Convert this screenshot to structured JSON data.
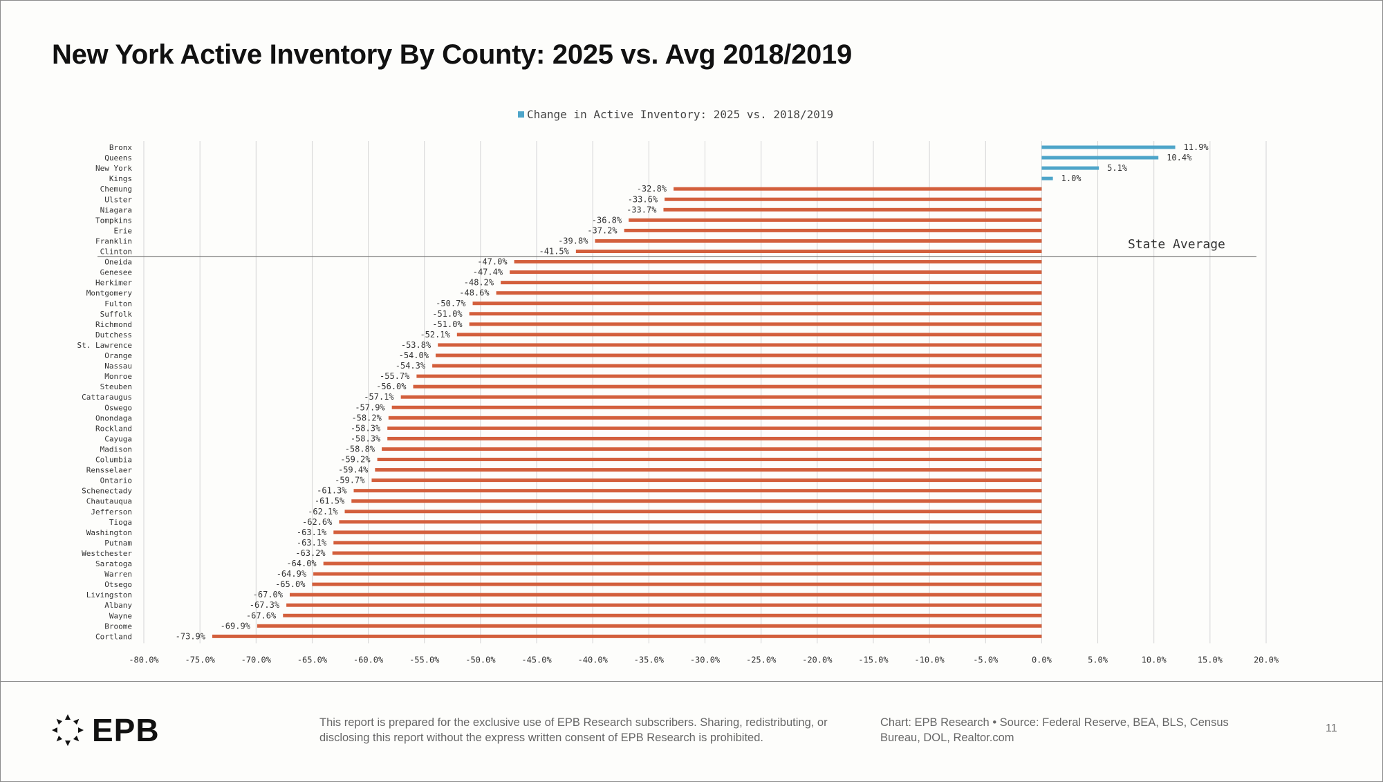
{
  "page": {
    "title": "New York Active Inventory By County: 2025 vs. Avg 2018/2019",
    "page_number": "11"
  },
  "footer": {
    "logo_text": "EPB",
    "disclaimer": "This report is prepared for the exclusive use of EPB Research subscribers. Sharing, redistributing, or disclosing this report without the express written consent of EPB Research is prohibited.",
    "source": "Chart: EPB Research  •  Source: Federal Reserve, BEA, BLS, Census Bureau, DOL, Realtor.com"
  },
  "colors": {
    "positive": "#4ea5c9",
    "negative": "#d35f3c",
    "grid": "#d4d4d4",
    "reference_line": "#777777",
    "text": "#333333"
  },
  "chart_data": {
    "type": "bar",
    "orientation": "horizontal",
    "legend": {
      "label": "Change in Active Inventory: 2025 vs. 2018/2019",
      "position": "top-center"
    },
    "xlim": [
      -80,
      20
    ],
    "xticks": [
      -80,
      -75,
      -70,
      -65,
      -60,
      -55,
      -50,
      -45,
      -40,
      -35,
      -30,
      -25,
      -20,
      -15,
      -10,
      -5,
      0,
      5,
      10,
      15,
      20
    ],
    "xtick_labels": [
      "-80.0%",
      "-75.0%",
      "-70.0%",
      "-65.0%",
      "-60.0%",
      "-55.0%",
      "-50.0%",
      "-45.0%",
      "-40.0%",
      "-35.0%",
      "-30.0%",
      "-25.0%",
      "-20.0%",
      "-15.0%",
      "-10.0%",
      "-5.0%",
      "0.0%",
      "5.0%",
      "10.0%",
      "15.0%",
      "20.0%"
    ],
    "grid": true,
    "categories": [
      "Bronx",
      "Queens",
      "New York",
      "Kings",
      "Chemung",
      "Ulster",
      "Niagara",
      "Tompkins",
      "Erie",
      "Franklin",
      "Clinton",
      "Oneida",
      "Genesee",
      "Herkimer",
      "Montgomery",
      "Fulton",
      "Suffolk",
      "Richmond",
      "Dutchess",
      "St. Lawrence",
      "Orange",
      "Nassau",
      "Monroe",
      "Steuben",
      "Cattaraugus",
      "Oswego",
      "Onondaga",
      "Rockland",
      "Cayuga",
      "Madison",
      "Columbia",
      "Rensselaer",
      "Ontario",
      "Schenectady",
      "Chautauqua",
      "Jefferson",
      "Tioga",
      "Washington",
      "Putnam",
      "Westchester",
      "Saratoga",
      "Warren",
      "Otsego",
      "Livingston",
      "Albany",
      "Wayne",
      "Broome",
      "Cortland"
    ],
    "values": [
      11.9,
      10.4,
      5.1,
      1.0,
      -32.8,
      -33.6,
      -33.7,
      -36.8,
      -37.2,
      -39.8,
      -41.5,
      -47.0,
      -47.4,
      -48.2,
      -48.6,
      -50.7,
      -51.0,
      -51.0,
      -52.1,
      -53.8,
      -54.0,
      -54.3,
      -55.7,
      -56.0,
      -57.1,
      -57.9,
      -58.2,
      -58.3,
      -58.3,
      -58.8,
      -59.2,
      -59.4,
      -59.7,
      -61.3,
      -61.5,
      -62.1,
      -62.6,
      -63.1,
      -63.1,
      -63.2,
      -64.0,
      -64.9,
      -65.0,
      -67.0,
      -67.3,
      -67.6,
      -69.9,
      -73.9
    ],
    "value_labels": [
      "11.9%",
      "10.4%",
      "5.1%",
      "1.0%",
      "-32.8%",
      "-33.6%",
      "-33.7%",
      "-36.8%",
      "-37.2%",
      "-39.8%",
      "-41.5%",
      "-47.0%",
      "-47.4%",
      "-48.2%",
      "-48.6%",
      "-50.7%",
      "-51.0%",
      "-51.0%",
      "-52.1%",
      "-53.8%",
      "-54.0%",
      "-54.3%",
      "-55.7%",
      "-56.0%",
      "-57.1%",
      "-57.9%",
      "-58.2%",
      "-58.3%",
      "-58.3%",
      "-58.8%",
      "-59.2%",
      "-59.4%",
      "-59.7%",
      "-61.3%",
      "-61.5%",
      "-62.1%",
      "-62.6%",
      "-63.1%",
      "-63.1%",
      "-63.2%",
      "-64.0%",
      "-64.9%",
      "-65.0%",
      "-67.0%",
      "-67.3%",
      "-67.6%",
      "-69.9%",
      "-73.9%"
    ],
    "reference_line": {
      "label": "State Average",
      "after_category": "Clinton"
    }
  }
}
